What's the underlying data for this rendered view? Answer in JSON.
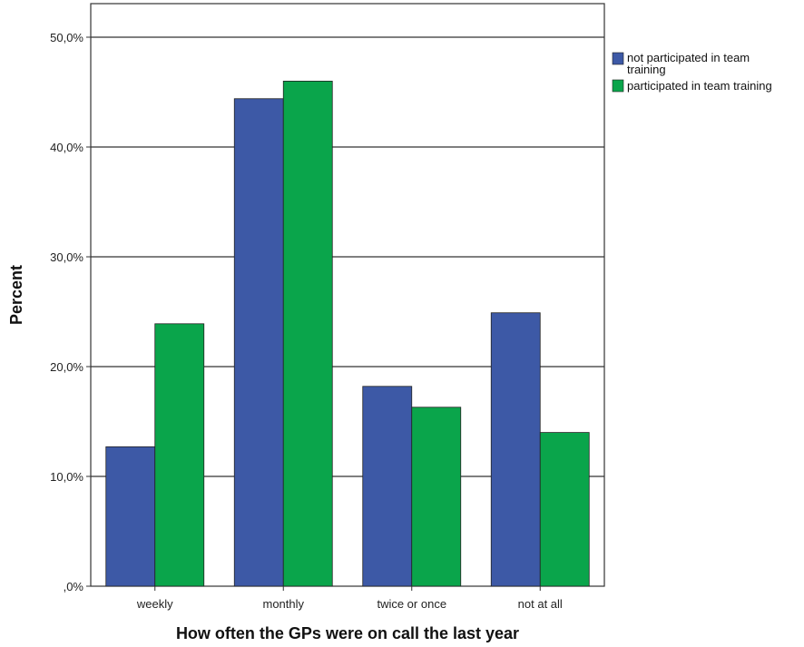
{
  "chart_data": {
    "type": "bar",
    "title": "",
    "xlabel": "How often the GPs were on call the last year",
    "ylabel": "Percent",
    "categories": [
      "weekly",
      "monthly",
      "twice or once",
      "not at all"
    ],
    "series": [
      {
        "name": "not participated in team training",
        "values": [
          12.7,
          44.4,
          18.2,
          24.9
        ],
        "color": "#3d59a6"
      },
      {
        "name": "participated in team training",
        "values": [
          23.9,
          46.0,
          16.3,
          14.0
        ],
        "color": "#0aa54b"
      }
    ],
    "ylim": [
      0,
      50
    ],
    "yticks": [
      0,
      10,
      20,
      30,
      40,
      50
    ],
    "ytick_labels": [
      ",0%",
      "10,0%",
      "20,0%",
      "30,0%",
      "40,0%",
      "50,0%"
    ],
    "grid": true,
    "legend_position": "top-right"
  }
}
